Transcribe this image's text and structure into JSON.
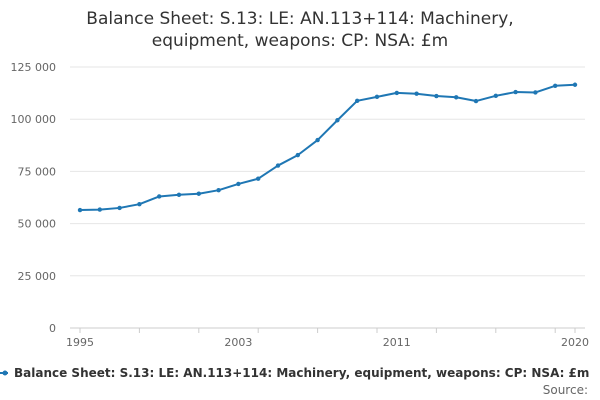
{
  "chart_data": {
    "type": "line",
    "title_lines": [
      "Balance Sheet: S.13: LE: AN.113+114: Machinery,",
      "equipment, weapons: CP: NSA: £m"
    ],
    "x": [
      1995,
      1996,
      1997,
      1998,
      1999,
      2000,
      2001,
      2002,
      2003,
      2004,
      2005,
      2006,
      2007,
      2008,
      2009,
      2010,
      2011,
      2012,
      2013,
      2014,
      2015,
      2016,
      2017,
      2018,
      2019,
      2020
    ],
    "series": [
      {
        "name": "Balance Sheet: S.13: LE: AN.113+114: Machinery, equipment, weapons: CP: NSA: £m",
        "values": [
          56500,
          56700,
          57500,
          59300,
          63000,
          63800,
          64300,
          66000,
          69000,
          71500,
          77800,
          82800,
          90000,
          99500,
          108800,
          110700,
          112600,
          112200,
          111100,
          110500,
          108700,
          111200,
          113000,
          112800,
          116000,
          116500
        ]
      }
    ],
    "x_tick_labels": [
      "1995",
      "2003",
      "2011",
      "2020"
    ],
    "y_tick_labels": [
      "0",
      "25 000",
      "50 000",
      "75 000",
      "100 000",
      "125 000"
    ],
    "y_ticks": [
      0,
      25000,
      50000,
      75000,
      100000,
      125000
    ],
    "ylim": [
      0,
      125000
    ],
    "xlim": [
      1995,
      2020
    ],
    "grid": true,
    "legend_position": "bottom",
    "line_color": "#1f77b4",
    "source_label": "Source:"
  }
}
